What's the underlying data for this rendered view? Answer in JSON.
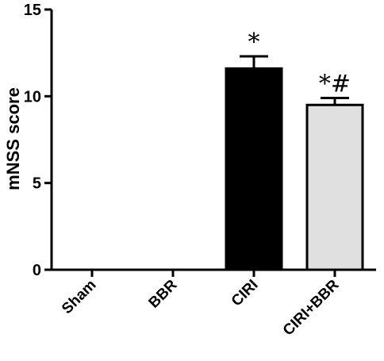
{
  "chart_data": {
    "type": "bar",
    "title": "",
    "xlabel": "",
    "ylabel": "mNSS score",
    "ylim": [
      0,
      15
    ],
    "yticks": [
      0,
      5,
      10,
      15
    ],
    "categories": [
      "Sham",
      "BBR",
      "CIRI",
      "CIRI+BBR"
    ],
    "values": [
      0,
      0,
      11.6,
      9.5
    ],
    "errors": [
      0,
      0,
      0.7,
      0.4
    ],
    "bar_colors": [
      "#000000",
      "#000000",
      "#000000",
      "#e0e0e0"
    ],
    "annotations": [
      "",
      "",
      "*",
      "*#"
    ],
    "grid": false,
    "legend": "none"
  }
}
